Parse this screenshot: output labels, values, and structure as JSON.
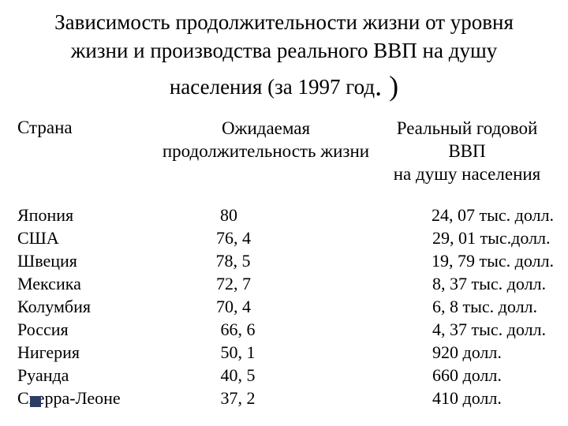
{
  "title_line1": "Зависимость продолжительности жизни от уровня",
  "title_line2": "жизни и производства реального ВВП на душу",
  "title_line3_a": "населения (за 1997 год",
  "title_line3_b": ". )",
  "columns": {
    "country": "Страна",
    "life_l1": "Ожидаемая",
    "life_l2": "продолжительность жизни",
    "gdp_l1": "Реальный годовой ВВП",
    "gdp_l2": "на душу населения"
  },
  "rows": [
    {
      "country": "Япония",
      "life": " 80",
      "gdp": "24, 07 тыс. долл."
    },
    {
      "country": "США",
      "life": "76, 4",
      "gdp": "29, 01 тыс.долл."
    },
    {
      "country": "Швеция",
      "life": "78, 5",
      "gdp": "19, 79 тыс. долл."
    },
    {
      "country": "Мексика",
      "life": "72, 7",
      "gdp": "8, 37 тыс. долл."
    },
    {
      "country": "Колумбия",
      "life": "70, 4",
      "gdp": "6, 8 тыс. долл."
    },
    {
      "country": "Россия",
      "life": " 66, 6",
      "gdp": " 4, 37 тыс. долл."
    },
    {
      "country": "Нигерия",
      "life": " 50, 1",
      "gdp": "920 долл."
    },
    {
      "country": "Руанда",
      "life": " 40, 5",
      "gdp": " 660 долл."
    },
    {
      "country": "Сьерра-Леоне",
      "life": " 37, 2",
      "gdp": " 410 долл."
    }
  ],
  "style": {
    "background": "#ffffff",
    "text_color": "#000000",
    "bullet_color": "#2e3c66",
    "title_fontsize": 27,
    "body_fontsize": 22
  }
}
